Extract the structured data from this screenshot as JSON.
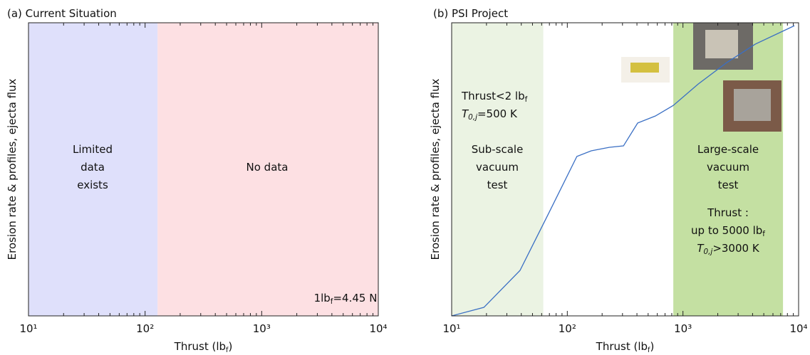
{
  "chart_data": [
    {
      "type": "span",
      "title": "(a) Current Situation",
      "xlabel": [
        {
          "text": "Thrust (lb"
        },
        {
          "text": "f",
          "style": "sub"
        },
        {
          "text": ")"
        }
      ],
      "ylabel": "Erosion rate & profiles, ejecta flux",
      "xscale": "log",
      "xlim": [
        10,
        10000
      ],
      "xticks": [
        {
          "value": 10,
          "label": "10¹"
        },
        {
          "value": 100,
          "label": "10²"
        },
        {
          "value": 1000,
          "label": "10³"
        },
        {
          "value": 10000,
          "label": "10⁴"
        }
      ],
      "xminorticks": [
        20,
        30,
        40,
        50,
        60,
        70,
        80,
        90,
        200,
        300,
        400,
        500,
        600,
        700,
        800,
        900,
        2000,
        3000,
        4000,
        5000,
        6000,
        7000,
        8000,
        9000
      ],
      "regions": [
        {
          "x": [
            10,
            128
          ],
          "color": "#dfe0fb"
        },
        {
          "x": [
            128,
            10000
          ],
          "color": "#fde0e3"
        }
      ],
      "annotations": [
        {
          "color": "#3b5ba5",
          "lines": [
            [
              {
                "text": "Limited"
              }
            ],
            [
              {
                "text": "data"
              }
            ],
            [
              {
                "text": "exists"
              }
            ]
          ]
        },
        {
          "color": "#3b5ba5",
          "lines": [
            [
              {
                "text": "No data"
              }
            ]
          ]
        },
        {
          "color": "#111111",
          "lines": [
            [
              {
                "text": "1lb"
              },
              {
                "text": "f",
                "style": "sub"
              },
              {
                "text": "=4.45 N"
              }
            ]
          ]
        }
      ]
    },
    {
      "type": "line",
      "title": "(b) PSI Project",
      "xlabel": [
        {
          "text": "Thrust (lb"
        },
        {
          "text": "f",
          "style": "sub"
        },
        {
          "text": ")"
        }
      ],
      "ylabel": "Erosion rate & profiles, ejecta flux",
      "xscale": "log",
      "xlim": [
        10,
        10000
      ],
      "ylim": [
        0,
        100
      ],
      "xticks": [
        {
          "value": 10,
          "label": "10¹"
        },
        {
          "value": 100,
          "label": "10²"
        },
        {
          "value": 1000,
          "label": "10³"
        },
        {
          "value": 10000,
          "label": "10⁴"
        }
      ],
      "xminorticks": [
        20,
        30,
        40,
        50,
        60,
        70,
        80,
        90,
        200,
        300,
        400,
        500,
        600,
        700,
        800,
        900,
        2000,
        3000,
        4000,
        5000,
        6000,
        7000,
        8000,
        9000
      ],
      "regions": [
        {
          "x": [
            10,
            62
          ],
          "color": "#ebf3e3"
        },
        {
          "x": [
            825,
            7330
          ],
          "color": "#c4e0a2"
        }
      ],
      "series": [
        {
          "color": "#3a6fc4",
          "x": [
            10,
            19,
            39,
            69,
            121,
            161,
            230,
            306,
            406,
            578,
            825,
            1355,
            2388,
            4217,
            9200
          ],
          "values": [
            0,
            2.9,
            15.5,
            35,
            54.4,
            56.3,
            57.5,
            58,
            65.8,
            68.2,
            71.8,
            79.1,
            86.4,
            92.7,
            99
          ]
        }
      ],
      "annotations": [
        {
          "color": "#111111",
          "lines": [
            [
              {
                "text": "Thrust<2 lb"
              },
              {
                "text": "f",
                "style": "sub"
              }
            ],
            [
              {
                "text": "T",
                "style": "italic"
              },
              {
                "text": "0,j",
                "style": "subitalic"
              },
              {
                "text": "=500 K"
              }
            ]
          ]
        },
        {
          "color": "#3b5ba5",
          "lines": [
            [
              {
                "text": "Sub-scale"
              }
            ],
            [
              {
                "text": "vacuum"
              }
            ],
            [
              {
                "text": "test"
              }
            ]
          ]
        },
        {
          "color": "#3b5ba5",
          "lines": [
            [
              {
                "text": "Large-scale"
              }
            ],
            [
              {
                "text": "vacuum"
              }
            ],
            [
              {
                "text": "test"
              }
            ]
          ]
        },
        {
          "color": "#111111",
          "lines": [
            [
              {
                "text": "Thrust :"
              }
            ],
            [
              {
                "text": "up to 5000 lb"
              },
              {
                "text": "f",
                "style": "sub"
              }
            ],
            [
              {
                "text": "T",
                "style": "italic"
              },
              {
                "text": "0,j",
                "style": "subitalic"
              },
              {
                "text": ">3000 K"
              }
            ]
          ]
        }
      ]
    }
  ]
}
